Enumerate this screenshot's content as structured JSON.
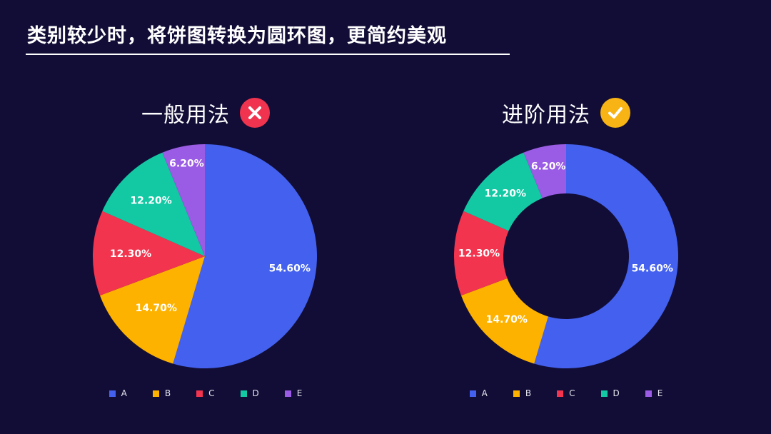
{
  "page": {
    "title": "类别较少时，将饼图转换为圆环图，更简约美观"
  },
  "panels": {
    "left": {
      "heading": "一般用法",
      "badge_icon": "x-circle-icon",
      "badge_color": "#f0344f"
    },
    "right": {
      "heading": "进阶用法",
      "badge_icon": "check-circle-icon",
      "badge_color": "#f8b314"
    }
  },
  "chart_data": [
    {
      "type": "pie",
      "categories": [
        "A",
        "B",
        "C",
        "D",
        "E"
      ],
      "values": [
        54.6,
        14.7,
        12.3,
        12.2,
        6.2
      ],
      "data_labels": [
        "54.60%",
        "14.70%",
        "12.30%",
        "12.20%",
        "6.20%"
      ],
      "colors": [
        "#4361ee",
        "#feb200",
        "#f2344f",
        "#13c9a4",
        "#9a5ce4"
      ],
      "legend_position": "bottom",
      "start_angle": "12 o'clock, clockwise"
    },
    {
      "type": "donut",
      "categories": [
        "A",
        "B",
        "C",
        "D",
        "E"
      ],
      "values": [
        54.6,
        14.7,
        12.3,
        12.2,
        6.2
      ],
      "data_labels": [
        "54.60%",
        "14.70%",
        "12.30%",
        "12.20%",
        "6.20%"
      ],
      "colors": [
        "#4361ee",
        "#feb200",
        "#f2344f",
        "#13c9a4",
        "#9a5ce4"
      ],
      "legend_position": "bottom",
      "start_angle": "12 o'clock, clockwise"
    }
  ]
}
